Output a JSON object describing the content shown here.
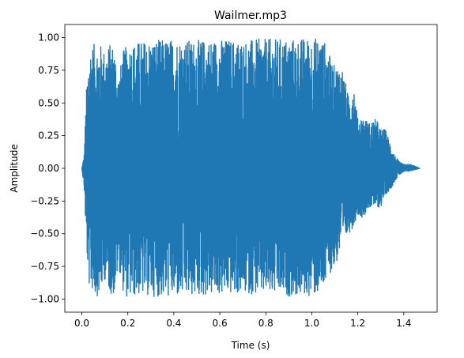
{
  "chart_data": {
    "type": "line",
    "title": "Wailmer.mp3",
    "xlabel": "Time (s)",
    "ylabel": "Amplitude",
    "xlim": [
      -0.074,
      1.545
    ],
    "ylim": [
      -1.1,
      1.1
    ],
    "x_ticks": [
      0.0,
      0.2,
      0.4,
      0.6,
      0.8,
      1.0,
      1.2,
      1.4
    ],
    "x_tick_labels": [
      "0.0",
      "0.2",
      "0.4",
      "0.6",
      "0.8",
      "1.0",
      "1.2",
      "1.4"
    ],
    "y_ticks": [
      -1.0,
      -0.75,
      -0.5,
      -0.25,
      0.0,
      0.25,
      0.5,
      0.75,
      1.0
    ],
    "y_tick_labels": [
      "−1.00",
      "−0.75",
      "−0.50",
      "−0.25",
      "0.00",
      "0.25",
      "0.50",
      "0.75",
      "1.00"
    ],
    "grid": false,
    "series": [
      {
        "color": "#1f77b4",
        "duration": 1.47,
        "envelope": {
          "time": [
            0.0,
            0.01,
            0.02,
            0.03,
            0.04,
            0.06,
            0.08,
            0.1,
            0.12,
            0.14,
            0.16,
            0.18,
            0.2,
            0.25,
            0.3,
            0.4,
            0.5,
            0.6,
            0.7,
            0.8,
            0.9,
            1.0,
            1.04,
            1.06,
            1.08,
            1.1,
            1.13,
            1.16,
            1.18,
            1.2,
            1.22,
            1.25,
            1.28,
            1.3,
            1.32,
            1.34,
            1.36,
            1.38,
            1.4,
            1.43,
            1.47
          ],
          "upper": [
            0.0,
            0.1,
            0.6,
            0.85,
            0.95,
            0.95,
            0.95,
            0.9,
            0.95,
            0.95,
            0.7,
            0.9,
            0.95,
            0.97,
            0.98,
            0.99,
            0.98,
            0.99,
            0.98,
            0.99,
            0.99,
            1.0,
            1.0,
            0.96,
            0.85,
            0.78,
            0.8,
            0.55,
            0.7,
            0.38,
            0.4,
            0.35,
            0.38,
            0.3,
            0.3,
            0.2,
            0.1,
            0.05,
            0.03,
            0.03,
            0.0
          ],
          "lower": [
            0.0,
            -0.15,
            -0.6,
            -0.9,
            -0.92,
            -0.98,
            -0.97,
            -0.85,
            -0.95,
            -0.98,
            -0.75,
            -0.95,
            -1.0,
            -0.97,
            -0.98,
            -0.99,
            -0.98,
            -0.97,
            -0.96,
            -0.97,
            -0.98,
            -0.98,
            -0.96,
            -0.9,
            -0.8,
            -0.77,
            -0.6,
            -0.5,
            -0.45,
            -0.35,
            -0.38,
            -0.3,
            -0.3,
            -0.3,
            -0.2,
            -0.17,
            -0.1,
            -0.05,
            -0.03,
            -0.02,
            0.0
          ]
        }
      }
    ]
  }
}
